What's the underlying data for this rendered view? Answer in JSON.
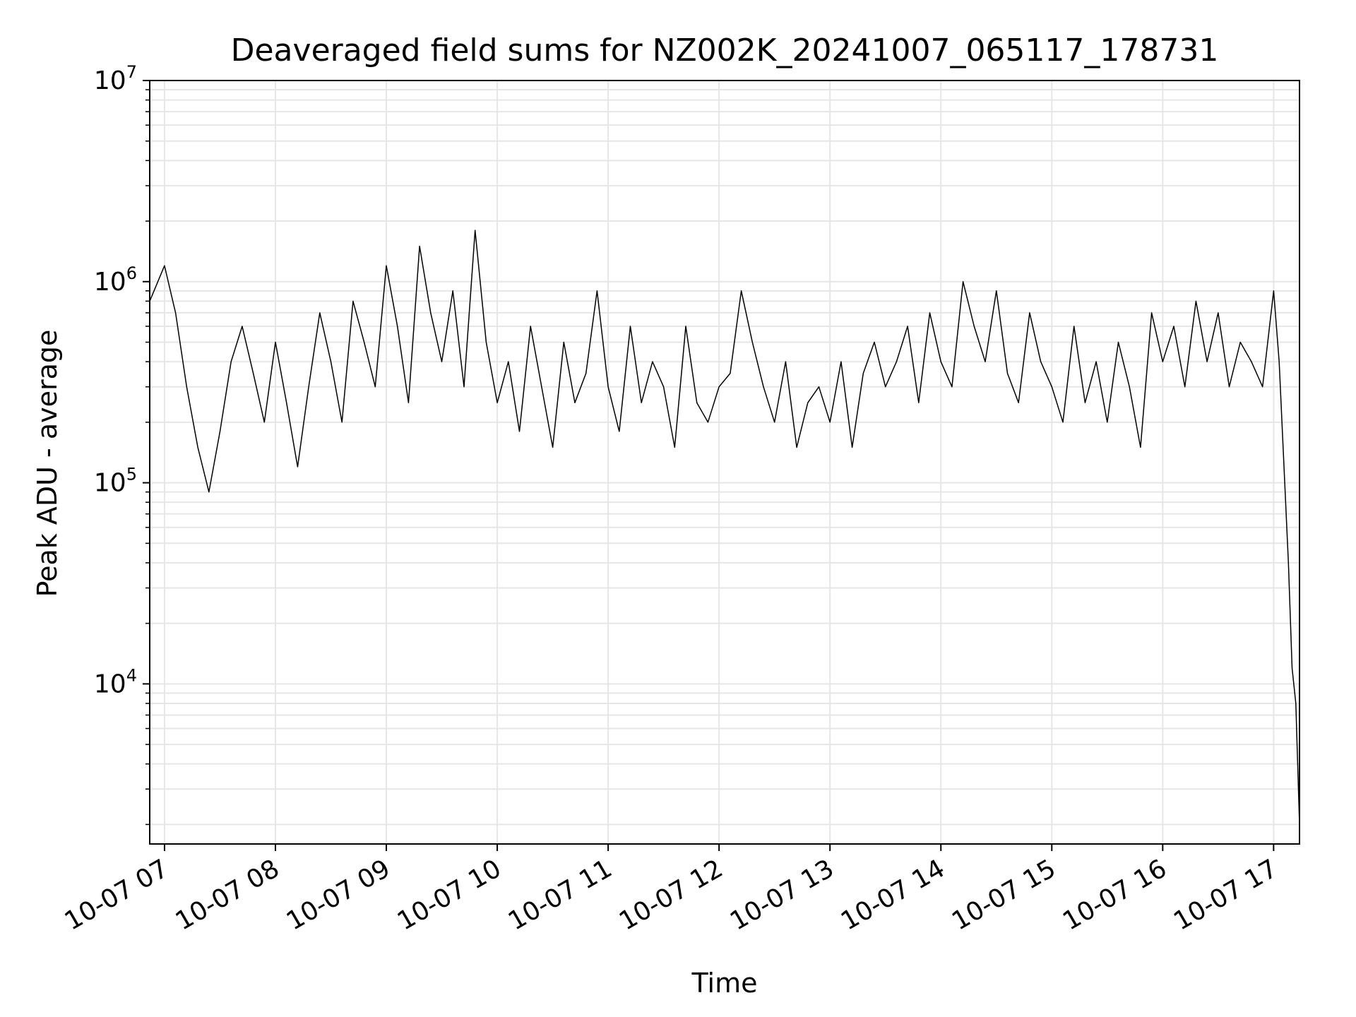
{
  "chart_data": {
    "type": "line",
    "title": "Deaveraged field sums for NZ002K_20241007_065117_178731",
    "xlabel": "Time",
    "ylabel": "Peak ADU - average",
    "yscale": "log",
    "ylim": [
      1600,
      10000000
    ],
    "xlim": [
      "2024-10-07 06:52",
      "2024-10-07 17:14"
    ],
    "grid": true,
    "line_color": "#000000",
    "grid_color": "#e6e6e6",
    "x_ticks": [
      {
        "t": "2024-10-07 07:00",
        "label": "10-07 07"
      },
      {
        "t": "2024-10-07 08:00",
        "label": "10-07 08"
      },
      {
        "t": "2024-10-07 09:00",
        "label": "10-07 09"
      },
      {
        "t": "2024-10-07 10:00",
        "label": "10-07 10"
      },
      {
        "t": "2024-10-07 11:00",
        "label": "10-07 11"
      },
      {
        "t": "2024-10-07 12:00",
        "label": "10-07 12"
      },
      {
        "t": "2024-10-07 13:00",
        "label": "10-07 13"
      },
      {
        "t": "2024-10-07 14:00",
        "label": "10-07 14"
      },
      {
        "t": "2024-10-07 15:00",
        "label": "10-07 15"
      },
      {
        "t": "2024-10-07 16:00",
        "label": "10-07 16"
      },
      {
        "t": "2024-10-07 17:00",
        "label": "10-07 17"
      }
    ],
    "y_ticks": [
      {
        "value": 10000,
        "base": "10",
        "exp": "4"
      },
      {
        "value": 100000,
        "base": "10",
        "exp": "5"
      },
      {
        "value": 1000000,
        "base": "10",
        "exp": "6"
      },
      {
        "value": 10000000,
        "base": "10",
        "exp": "7"
      }
    ],
    "series": [
      {
        "x": [
          "2024-10-07 06:52",
          "2024-10-07 07:00",
          "2024-10-07 07:06",
          "2024-10-07 07:12",
          "2024-10-07 07:18",
          "2024-10-07 07:24",
          "2024-10-07 07:30",
          "2024-10-07 07:36",
          "2024-10-07 07:42",
          "2024-10-07 07:48",
          "2024-10-07 07:54",
          "2024-10-07 08:00",
          "2024-10-07 08:06",
          "2024-10-07 08:12",
          "2024-10-07 08:18",
          "2024-10-07 08:24",
          "2024-10-07 08:30",
          "2024-10-07 08:36",
          "2024-10-07 08:42",
          "2024-10-07 08:48",
          "2024-10-07 08:54",
          "2024-10-07 09:00",
          "2024-10-07 09:06",
          "2024-10-07 09:12",
          "2024-10-07 09:18",
          "2024-10-07 09:24",
          "2024-10-07 09:30",
          "2024-10-07 09:36",
          "2024-10-07 09:42",
          "2024-10-07 09:48",
          "2024-10-07 09:54",
          "2024-10-07 10:00",
          "2024-10-07 10:06",
          "2024-10-07 10:12",
          "2024-10-07 10:18",
          "2024-10-07 10:24",
          "2024-10-07 10:30",
          "2024-10-07 10:36",
          "2024-10-07 10:42",
          "2024-10-07 10:48",
          "2024-10-07 10:54",
          "2024-10-07 11:00",
          "2024-10-07 11:06",
          "2024-10-07 11:12",
          "2024-10-07 11:18",
          "2024-10-07 11:24",
          "2024-10-07 11:30",
          "2024-10-07 11:36",
          "2024-10-07 11:42",
          "2024-10-07 11:48",
          "2024-10-07 11:54",
          "2024-10-07 12:00",
          "2024-10-07 12:06",
          "2024-10-07 12:12",
          "2024-10-07 12:18",
          "2024-10-07 12:24",
          "2024-10-07 12:30",
          "2024-10-07 12:36",
          "2024-10-07 12:42",
          "2024-10-07 12:48",
          "2024-10-07 12:54",
          "2024-10-07 13:00",
          "2024-10-07 13:06",
          "2024-10-07 13:12",
          "2024-10-07 13:18",
          "2024-10-07 13:24",
          "2024-10-07 13:30",
          "2024-10-07 13:36",
          "2024-10-07 13:42",
          "2024-10-07 13:48",
          "2024-10-07 13:54",
          "2024-10-07 14:00",
          "2024-10-07 14:06",
          "2024-10-07 14:12",
          "2024-10-07 14:18",
          "2024-10-07 14:24",
          "2024-10-07 14:30",
          "2024-10-07 14:36",
          "2024-10-07 14:42",
          "2024-10-07 14:48",
          "2024-10-07 14:54",
          "2024-10-07 15:00",
          "2024-10-07 15:06",
          "2024-10-07 15:12",
          "2024-10-07 15:18",
          "2024-10-07 15:24",
          "2024-10-07 15:30",
          "2024-10-07 15:36",
          "2024-10-07 15:42",
          "2024-10-07 15:48",
          "2024-10-07 15:54",
          "2024-10-07 16:00",
          "2024-10-07 16:06",
          "2024-10-07 16:12",
          "2024-10-07 16:18",
          "2024-10-07 16:24",
          "2024-10-07 16:30",
          "2024-10-07 16:36",
          "2024-10-07 16:42",
          "2024-10-07 16:48",
          "2024-10-07 16:54",
          "2024-10-07 17:00",
          "2024-10-07 17:03",
          "2024-10-07 17:06",
          "2024-10-07 17:08",
          "2024-10-07 17:10",
          "2024-10-07 17:12",
          "2024-10-07 17:14"
        ],
        "y": [
          800000,
          1200000,
          700000,
          300000,
          150000,
          90000,
          180000,
          400000,
          600000,
          350000,
          200000,
          500000,
          250000,
          120000,
          300000,
          700000,
          400000,
          200000,
          800000,
          500000,
          300000,
          1200000,
          600000,
          250000,
          1500000,
          700000,
          400000,
          900000,
          300000,
          1800000,
          500000,
          250000,
          400000,
          180000,
          600000,
          300000,
          150000,
          500000,
          250000,
          350000,
          900000,
          300000,
          180000,
          600000,
          250000,
          400000,
          300000,
          150000,
          600000,
          250000,
          200000,
          300000,
          350000,
          900000,
          500000,
          300000,
          200000,
          400000,
          150000,
          250000,
          300000,
          200000,
          400000,
          150000,
          350000,
          500000,
          300000,
          400000,
          600000,
          250000,
          700000,
          400000,
          300000,
          1000000,
          600000,
          400000,
          900000,
          350000,
          250000,
          700000,
          400000,
          300000,
          200000,
          600000,
          250000,
          400000,
          200000,
          500000,
          300000,
          150000,
          700000,
          400000,
          600000,
          300000,
          800000,
          400000,
          700000,
          300000,
          500000,
          400000,
          300000,
          900000,
          400000,
          100000,
          40000,
          12000,
          8000,
          2000
        ]
      }
    ]
  }
}
